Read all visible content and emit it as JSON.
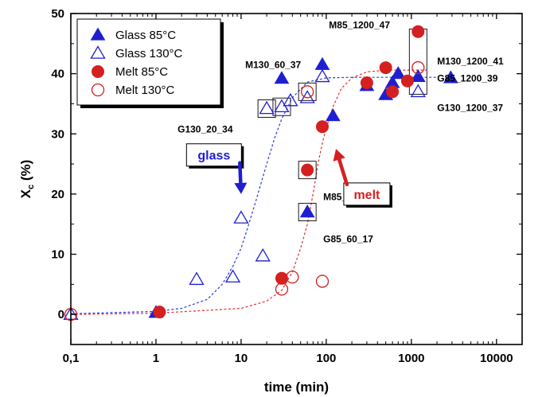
{
  "chart_data": {
    "type": "scatter",
    "xscale": "log",
    "xlim": [
      0.1,
      20000
    ],
    "ylim": [
      -5,
      50
    ],
    "xlabel": "time (min)",
    "ylabel_main": "X",
    "ylabel_sub": "c",
    "ylabel_unit": " (%)",
    "xticks": [
      0.1,
      1,
      10,
      100,
      1000,
      10000
    ],
    "xtick_labels": [
      "0,1",
      "1",
      "10",
      "100",
      "1000",
      "10000"
    ],
    "yticks": [
      0,
      10,
      20,
      30,
      40,
      50
    ],
    "ytick_labels": [
      "0",
      "10",
      "20",
      "30",
      "40",
      "50"
    ],
    "legend_position": "top-left",
    "series": [
      {
        "name": "Glass 85°C",
        "marker": "triangle-filled",
        "color": "#1f1fd1",
        "points": [
          [
            1.0,
            0.3
          ],
          [
            30,
            39.2
          ],
          [
            60,
            17.0
          ],
          [
            90,
            41.5
          ],
          [
            120,
            33.0
          ],
          [
            300,
            38.0
          ],
          [
            500,
            36.5
          ],
          [
            600,
            38.5
          ],
          [
            700,
            40.0
          ],
          [
            1200,
            39.5
          ],
          [
            2900,
            39.3
          ]
        ]
      },
      {
        "name": "Glass 130°C",
        "marker": "triangle-open",
        "color": "#1f1fd1",
        "points": [
          [
            0.1,
            0.0
          ],
          [
            3,
            5.8
          ],
          [
            8,
            6.2
          ],
          [
            10,
            16.0
          ],
          [
            18,
            9.7
          ],
          [
            20,
            34.2
          ],
          [
            30,
            34.5
          ],
          [
            38,
            35.5
          ],
          [
            60,
            36.0
          ],
          [
            90,
            39.5
          ],
          [
            1200,
            37.0
          ]
        ]
      },
      {
        "name": "Melt 85°C",
        "marker": "circle-filled",
        "color": "#d42020",
        "points": [
          [
            1.1,
            0.4
          ],
          [
            30,
            6.0
          ],
          [
            60,
            24.0
          ],
          [
            90,
            31.2
          ],
          [
            300,
            38.5
          ],
          [
            500,
            41.0
          ],
          [
            600,
            37.0
          ],
          [
            900,
            38.8
          ],
          [
            1200,
            47.0
          ]
        ]
      },
      {
        "name": "Melt 130°C",
        "marker": "circle-open",
        "color": "#d42020",
        "points": [
          [
            0.1,
            0.0
          ],
          [
            30,
            4.2
          ],
          [
            40,
            6.2
          ],
          [
            60,
            37.0
          ],
          [
            90,
            5.5
          ],
          [
            1200,
            41.0
          ]
        ]
      }
    ],
    "fits": [
      {
        "series": "glass",
        "color": "#2a3be0",
        "points": [
          [
            0.1,
            0.1
          ],
          [
            1,
            0.5
          ],
          [
            2,
            1.0
          ],
          [
            4,
            2.5
          ],
          [
            6,
            5.0
          ],
          [
            8,
            8.0
          ],
          [
            10,
            11.0
          ],
          [
            12,
            14.5
          ],
          [
            15,
            19.0
          ],
          [
            20,
            25.0
          ],
          [
            25,
            29.5
          ],
          [
            30,
            32.5
          ],
          [
            40,
            36.0
          ],
          [
            60,
            38.6
          ],
          [
            100,
            39.3
          ],
          [
            200,
            39.4
          ],
          [
            1000,
            39.4
          ],
          [
            2000,
            39.4
          ]
        ]
      },
      {
        "series": "melt",
        "color": "#e03030",
        "points": [
          [
            0.1,
            0.0
          ],
          [
            1,
            0.2
          ],
          [
            10,
            1.0
          ],
          [
            20,
            2.2
          ],
          [
            30,
            4.0
          ],
          [
            40,
            7.0
          ],
          [
            50,
            11.0
          ],
          [
            60,
            15.0
          ],
          [
            70,
            20.0
          ],
          [
            80,
            25.0
          ],
          [
            90,
            28.5
          ],
          [
            100,
            31.0
          ],
          [
            120,
            34.5
          ],
          [
            150,
            37.5
          ],
          [
            200,
            39.3
          ],
          [
            300,
            40.3
          ],
          [
            500,
            40.6
          ],
          [
            1000,
            40.6
          ],
          [
            1500,
            40.6
          ]
        ]
      }
    ],
    "annotations": [
      {
        "text": "M85_1200_47",
        "x": 1200,
        "y": 47
      },
      {
        "text": "M130_1200_41",
        "x": 1200,
        "y": 41
      },
      {
        "text": "G85_1200_39",
        "x": 1200,
        "y": 39.5
      },
      {
        "text": "G130_1200_37",
        "x": 1200,
        "y": 37
      },
      {
        "text": "M130_60_37",
        "x": 60,
        "y": 37
      },
      {
        "text": "G130_20_34",
        "x": 20,
        "y": 34.2
      },
      {
        "text": "M85_60_24",
        "x": 60,
        "y": 24
      },
      {
        "text": "G85_60_17",
        "x": 60,
        "y": 17
      }
    ],
    "boxed_points": [
      {
        "x": 20,
        "y": 34.2
      },
      {
        "x": 30,
        "y": 34.5
      },
      {
        "x": 60,
        "y": 37.0
      },
      {
        "x": 60,
        "y": 24.0
      },
      {
        "x": 60,
        "y": 17.0
      },
      {
        "x": 1200,
        "y": 42
      }
    ],
    "callouts": [
      {
        "text": "glass",
        "color": "#1f1fd1",
        "x": 4.8,
        "y": 26.5,
        "arrow_to": [
          10,
          20
        ]
      },
      {
        "text": "melt",
        "color": "#d42020",
        "x": 300,
        "y": 20.0,
        "arrow_to": [
          130,
          27.5
        ]
      }
    ]
  }
}
